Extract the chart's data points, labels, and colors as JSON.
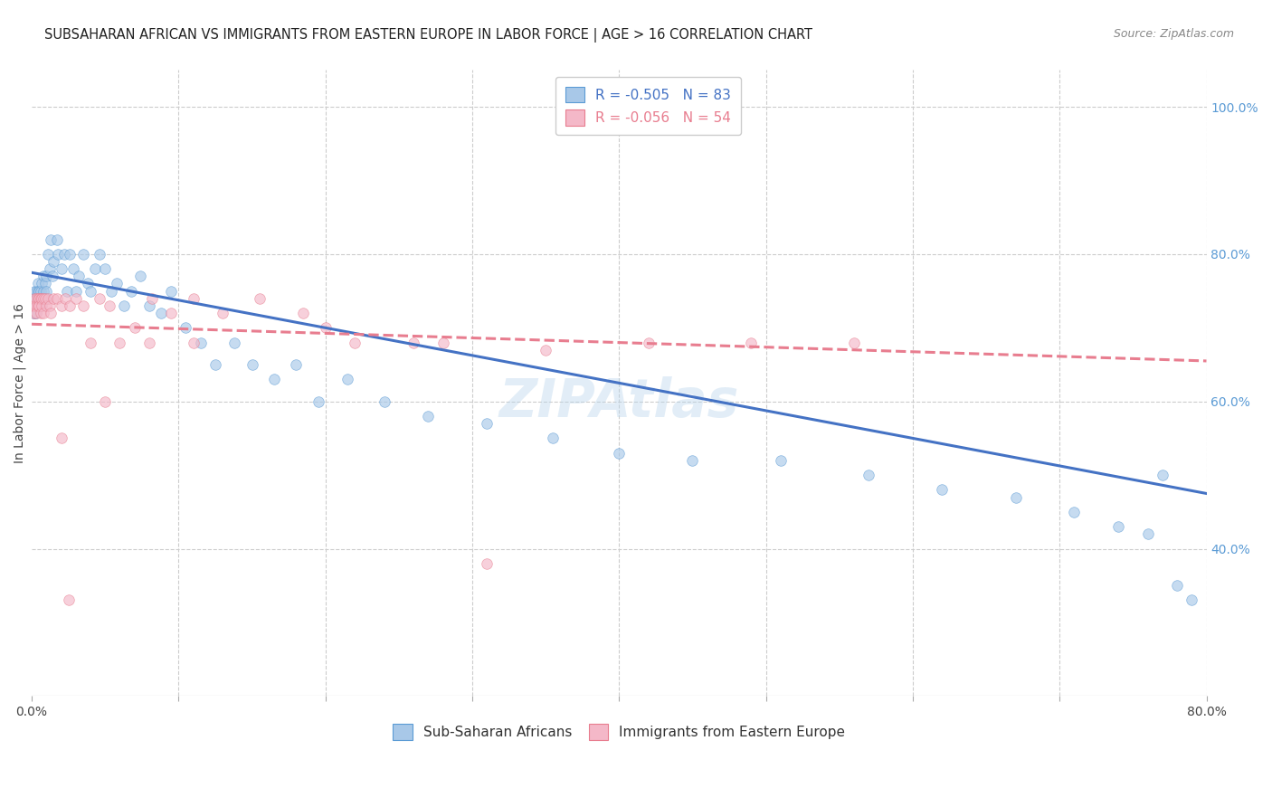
{
  "title": "SUBSAHARAN AFRICAN VS IMMIGRANTS FROM EASTERN EUROPE IN LABOR FORCE | AGE > 16 CORRELATION CHART",
  "source": "Source: ZipAtlas.com",
  "ylabel": "In Labor Force | Age > 16",
  "right_yticks": [
    "100.0%",
    "80.0%",
    "60.0%",
    "40.0%"
  ],
  "right_ytick_vals": [
    1.0,
    0.8,
    0.6,
    0.4
  ],
  "blue_R": -0.505,
  "blue_N": 83,
  "pink_R": -0.056,
  "pink_N": 54,
  "blue_color": "#a8c8e8",
  "blue_edge_color": "#5b9bd5",
  "blue_line_color": "#4472c4",
  "pink_color": "#f4b8c8",
  "pink_edge_color": "#e87d8f",
  "pink_line_color": "#e87d8f",
  "background_color": "#ffffff",
  "grid_color": "#cccccc",
  "blue_line_start_y": 0.775,
  "blue_line_end_y": 0.475,
  "pink_line_start_y": 0.705,
  "pink_line_end_y": 0.655,
  "blue_scatter_x": [
    0.001,
    0.001,
    0.001,
    0.002,
    0.002,
    0.002,
    0.002,
    0.003,
    0.003,
    0.003,
    0.003,
    0.004,
    0.004,
    0.004,
    0.004,
    0.005,
    0.005,
    0.005,
    0.005,
    0.006,
    0.006,
    0.006,
    0.007,
    0.007,
    0.008,
    0.008,
    0.009,
    0.009,
    0.01,
    0.01,
    0.011,
    0.012,
    0.013,
    0.014,
    0.015,
    0.017,
    0.018,
    0.02,
    0.022,
    0.024,
    0.026,
    0.028,
    0.03,
    0.032,
    0.035,
    0.038,
    0.04,
    0.043,
    0.046,
    0.05,
    0.054,
    0.058,
    0.063,
    0.068,
    0.074,
    0.08,
    0.088,
    0.095,
    0.105,
    0.115,
    0.125,
    0.138,
    0.15,
    0.165,
    0.18,
    0.195,
    0.215,
    0.24,
    0.27,
    0.31,
    0.355,
    0.4,
    0.45,
    0.51,
    0.57,
    0.62,
    0.67,
    0.71,
    0.74,
    0.76,
    0.77,
    0.78,
    0.79
  ],
  "blue_scatter_y": [
    0.73,
    0.74,
    0.72,
    0.75,
    0.73,
    0.74,
    0.72,
    0.75,
    0.74,
    0.73,
    0.72,
    0.76,
    0.74,
    0.75,
    0.73,
    0.74,
    0.73,
    0.75,
    0.74,
    0.75,
    0.74,
    0.73,
    0.76,
    0.74,
    0.77,
    0.75,
    0.76,
    0.74,
    0.77,
    0.75,
    0.8,
    0.78,
    0.82,
    0.77,
    0.79,
    0.82,
    0.8,
    0.78,
    0.8,
    0.75,
    0.8,
    0.78,
    0.75,
    0.77,
    0.8,
    0.76,
    0.75,
    0.78,
    0.8,
    0.78,
    0.75,
    0.76,
    0.73,
    0.75,
    0.77,
    0.73,
    0.72,
    0.75,
    0.7,
    0.68,
    0.65,
    0.68,
    0.65,
    0.63,
    0.65,
    0.6,
    0.63,
    0.6,
    0.58,
    0.57,
    0.55,
    0.53,
    0.52,
    0.52,
    0.5,
    0.48,
    0.47,
    0.45,
    0.43,
    0.42,
    0.5,
    0.35,
    0.33
  ],
  "pink_scatter_x": [
    0.001,
    0.001,
    0.002,
    0.002,
    0.003,
    0.003,
    0.003,
    0.004,
    0.004,
    0.005,
    0.005,
    0.006,
    0.006,
    0.007,
    0.007,
    0.008,
    0.008,
    0.009,
    0.01,
    0.011,
    0.012,
    0.013,
    0.015,
    0.017,
    0.02,
    0.023,
    0.026,
    0.03,
    0.035,
    0.04,
    0.046,
    0.053,
    0.06,
    0.07,
    0.082,
    0.095,
    0.11,
    0.13,
    0.155,
    0.185,
    0.22,
    0.26,
    0.31,
    0.11,
    0.2,
    0.28,
    0.35,
    0.42,
    0.49,
    0.56,
    0.02,
    0.025,
    0.05,
    0.08
  ],
  "pink_scatter_y": [
    0.73,
    0.72,
    0.74,
    0.73,
    0.74,
    0.73,
    0.72,
    0.74,
    0.73,
    0.74,
    0.73,
    0.74,
    0.72,
    0.74,
    0.73,
    0.74,
    0.72,
    0.74,
    0.73,
    0.74,
    0.73,
    0.72,
    0.74,
    0.74,
    0.73,
    0.74,
    0.73,
    0.74,
    0.73,
    0.68,
    0.74,
    0.73,
    0.68,
    0.7,
    0.74,
    0.72,
    0.74,
    0.72,
    0.74,
    0.72,
    0.68,
    0.68,
    0.38,
    0.68,
    0.7,
    0.68,
    0.67,
    0.68,
    0.68,
    0.68,
    0.55,
    0.33,
    0.6,
    0.68
  ],
  "xlim": [
    0.0,
    0.8
  ],
  "ylim": [
    0.2,
    1.05
  ],
  "marker_size": 70,
  "marker_alpha": 0.65,
  "line_width": 2.2,
  "title_fontsize": 10.5,
  "source_fontsize": 9,
  "axis_label_fontsize": 10,
  "tick_fontsize": 10,
  "legend_fontsize": 11
}
